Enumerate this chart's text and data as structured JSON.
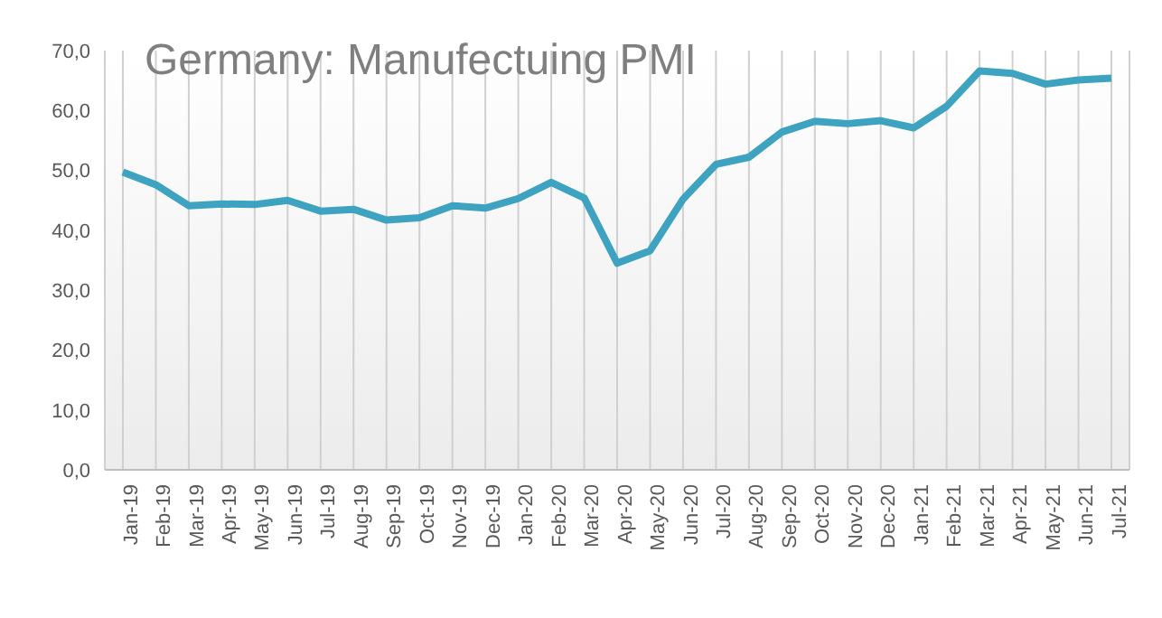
{
  "chart_data": {
    "type": "line",
    "title": "Germany: Manufectuing PMI",
    "categories": [
      "Jan-19",
      "Feb-19",
      "Mar-19",
      "Apr-19",
      "May-19",
      "Jun-19",
      "Jul-19",
      "Aug-19",
      "Sep-19",
      "Oct-19",
      "Nov-19",
      "Dec-19",
      "Jan-20",
      "Feb-20",
      "Mar-20",
      "Apr-20",
      "May-20",
      "Jun-20",
      "Jul-20",
      "Aug-20",
      "Sep-20",
      "Oct-20",
      "Nov-20",
      "Dec-20",
      "Jan-21",
      "Feb-21",
      "Mar-21",
      "Apr-21",
      "May-21",
      "Jun-21",
      "Jul-21"
    ],
    "series": [
      {
        "color": "#3ea3c0",
        "values": [
          49.7,
          47.6,
          44.1,
          44.4,
          44.3,
          45.0,
          43.2,
          43.5,
          41.7,
          42.1,
          44.1,
          43.7,
          45.3,
          48.0,
          45.4,
          34.5,
          36.6,
          45.2,
          51.0,
          52.2,
          56.4,
          58.2,
          57.8,
          58.3,
          57.1,
          60.7,
          66.6,
          66.2,
          64.4,
          65.1,
          65.4
        ]
      }
    ],
    "ylim": [
      0,
      70
    ],
    "yticks": [
      {
        "value": 0,
        "label": "0,0"
      },
      {
        "value": 10,
        "label": "10,0"
      },
      {
        "value": 20,
        "label": "20,0"
      },
      {
        "value": 30,
        "label": "30,0"
      },
      {
        "value": 40,
        "label": "40,0"
      },
      {
        "value": 50,
        "label": "50,0"
      },
      {
        "value": 60,
        "label": "60,0"
      },
      {
        "value": 70,
        "label": "70,0"
      }
    ],
    "grid": "x",
    "marker": "none",
    "line_style": "solid"
  }
}
